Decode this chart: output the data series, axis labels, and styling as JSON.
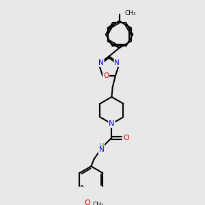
{
  "background_color": "#e8e8e8",
  "bond_color": "#000000",
  "bond_width": 1.5,
  "atom_colors": {
    "C": "#000000",
    "N": "#0000cc",
    "O": "#cc0000",
    "H": "#4a9a8a"
  },
  "figsize": [
    3.0,
    3.0
  ],
  "dpi": 100
}
